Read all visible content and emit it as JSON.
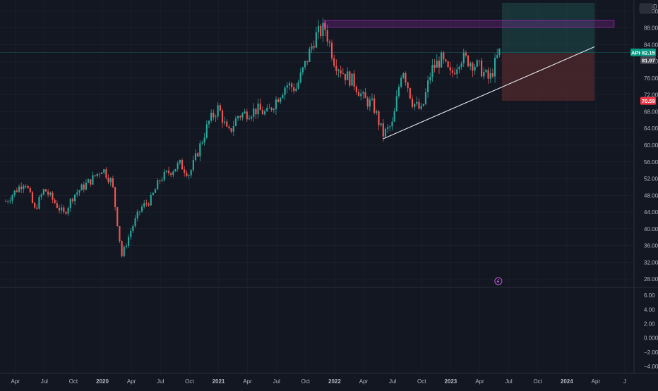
{
  "chart_data": {
    "type": "candlestick",
    "symbol": "APH",
    "currency": "USD",
    "price_axis": {
      "ticks": [
        "92.00",
        "88.00",
        "84.00",
        "80.00",
        "76.00",
        "72.00",
        "68.00",
        "64.00",
        "60.00",
        "56.00",
        "52.00",
        "48.00",
        "44.00",
        "40.00",
        "36.00",
        "32.00",
        "28.00"
      ],
      "range": [
        26,
        94
      ]
    },
    "oscillator_axis": {
      "ticks": [
        "6.00",
        "4.00",
        "2.00",
        "0.0000",
        "−2.00",
        "−4.00"
      ],
      "range": [
        -5,
        7
      ]
    },
    "time_axis": {
      "ticks": [
        "Apr",
        "Jul",
        "Oct",
        "2020",
        "Apr",
        "Jul",
        "Oct",
        "2021",
        "Apr",
        "Jul",
        "Oct",
        "2022",
        "Apr",
        "Jul",
        "Oct",
        "2023",
        "Apr",
        "Jul",
        "Oct",
        "2024",
        "Apr",
        "J"
      ],
      "range": [
        "2019-03",
        "2024-07"
      ]
    },
    "last_price_label": "82.15",
    "second_price_label": "81.97",
    "stop_price_label": "70.59",
    "colors": {
      "up": "#26a69a",
      "down": "#ef5350",
      "background": "#131722",
      "grid": "#2a2e39",
      "trendline": "#e0e3eb",
      "resistance_zone": "#9c27b0",
      "target_zone": "#1f4d4a",
      "stop_zone": "#5a2930",
      "event_icon": "#c158dc"
    },
    "series_keypoints": [
      [
        "2019-03",
        46.5
      ],
      [
        "2019-05",
        51.5
      ],
      [
        "2019-06",
        44.5
      ],
      [
        "2019-07",
        49.5
      ],
      [
        "2019-09",
        43.5
      ],
      [
        "2019-10",
        48.0
      ],
      [
        "2019-12",
        52.0
      ],
      [
        "2020-01",
        54.5
      ],
      [
        "2020-02",
        51.0
      ],
      [
        "2020-03",
        33.5
      ],
      [
        "2020-04",
        40.0
      ],
      [
        "2020-05",
        45.0
      ],
      [
        "2020-06",
        47.0
      ],
      [
        "2020-07",
        52.0
      ],
      [
        "2020-09",
        55.5
      ],
      [
        "2020-10",
        53.0
      ],
      [
        "2020-12",
        65.5
      ],
      [
        "2021-01",
        69.0
      ],
      [
        "2021-02",
        62.5
      ],
      [
        "2021-03",
        67.0
      ],
      [
        "2021-05",
        68.5
      ],
      [
        "2021-06",
        67.5
      ],
      [
        "2021-08",
        74.5
      ],
      [
        "2021-09",
        73.5
      ],
      [
        "2021-10",
        79.5
      ],
      [
        "2021-11",
        86.0
      ],
      [
        "2021-12",
        88.0
      ],
      [
        "2022-01",
        80.0
      ],
      [
        "2022-02",
        77.0
      ],
      [
        "2022-03",
        75.0
      ],
      [
        "2022-04",
        71.0
      ],
      [
        "2022-05",
        69.5
      ],
      [
        "2022-06",
        62.5
      ],
      [
        "2022-07",
        65.0
      ],
      [
        "2022-08",
        79.0
      ],
      [
        "2022-09",
        70.5
      ],
      [
        "2022-10",
        68.0
      ],
      [
        "2022-11",
        78.0
      ],
      [
        "2022-12",
        80.5
      ],
      [
        "2023-01",
        76.5
      ],
      [
        "2023-02",
        81.0
      ],
      [
        "2023-03",
        80.0
      ],
      [
        "2023-04",
        78.5
      ],
      [
        "2023-05",
        75.5
      ],
      [
        "2023-06",
        82.15
      ]
    ],
    "trendline": {
      "from": [
        "2022-06",
        61.5
      ],
      "to": [
        "2024-03",
        83.5
      ]
    },
    "resistance_zone": {
      "from": "2021-12",
      "to": "2024-04",
      "price_low": 88.2,
      "price_high": 89.8
    },
    "position": {
      "from": "2023-06",
      "to": "2024-03",
      "entry": 81.97,
      "target": 94.0,
      "stop": 70.59
    },
    "grid": true
  }
}
